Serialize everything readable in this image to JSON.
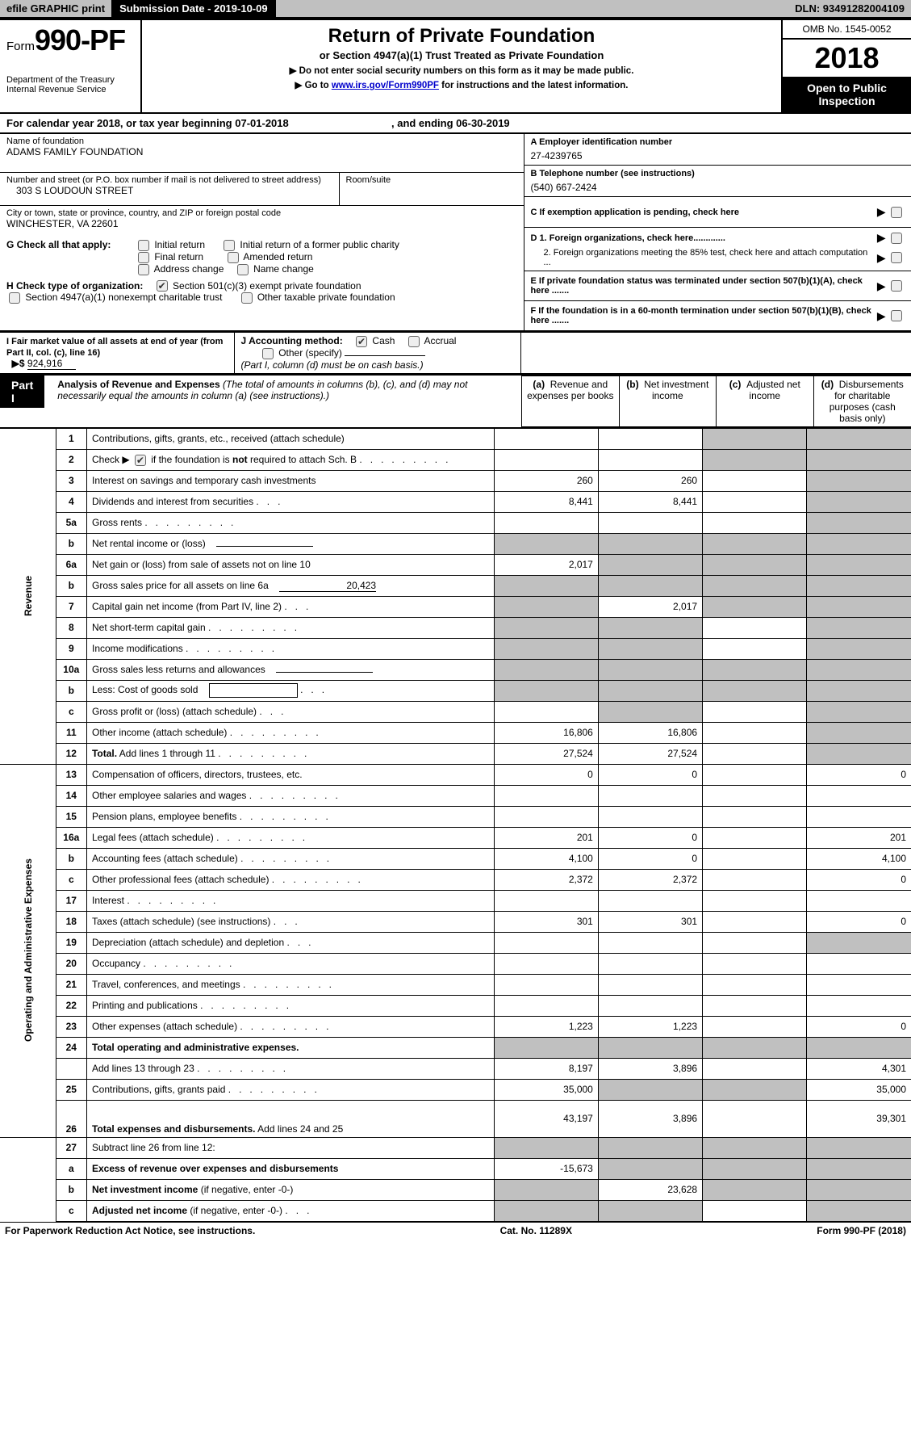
{
  "topbar": {
    "efile": "efile GRAPHIC print",
    "submission": "Submission Date - 2019-10-09",
    "dln": "DLN: 93491282004109"
  },
  "header": {
    "form_prefix": "Form",
    "form_number": "990-PF",
    "dept1": "Department of the Treasury",
    "dept2": "Internal Revenue Service",
    "title": "Return of Private Foundation",
    "subtitle": "or Section 4947(a)(1) Trust Treated as Private Foundation",
    "note1": "▶ Do not enter social security numbers on this form as it may be made public.",
    "note2_pre": "▶ Go to ",
    "note2_link": "www.irs.gov/Form990PF",
    "note2_post": " for instructions and the latest information.",
    "omb": "OMB No. 1545-0052",
    "year": "2018",
    "inspection": "Open to Public Inspection"
  },
  "calendar_line": {
    "pre": "For calendar year 2018, or tax year beginning ",
    "begin": "07-01-2018",
    "mid": ", and ending ",
    "end": "06-30-2019"
  },
  "identity": {
    "name_label": "Name of foundation",
    "name": "ADAMS FAMILY FOUNDATION",
    "street_label": "Number and street (or P.O. box number if mail is not delivered to street address)",
    "street": "303 S LOUDOUN STREET",
    "room_label": "Room/suite",
    "room": "",
    "city_label": "City or town, state or province, country, and ZIP or foreign postal code",
    "city": "WINCHESTER, VA  22601"
  },
  "right_block": {
    "a_label": "A Employer identification number",
    "a_val": "27-4239765",
    "b_label": "B Telephone number (see instructions)",
    "b_val": "(540) 667-2424",
    "c_label": "C  If exemption application is pending, check here",
    "d1": "D 1. Foreign organizations, check here.............",
    "d2": "2. Foreign organizations meeting the 85% test, check here and attach computation ...",
    "e": "E   If private foundation status was terminated under section 507(b)(1)(A), check here .......",
    "f": "F   If the foundation is in a 60-month termination under section 507(b)(1)(B), check here ......."
  },
  "section_g": {
    "label": "G Check all that apply:",
    "opts": [
      "Initial return",
      "Initial return of a former public charity",
      "Final return",
      "Amended return",
      "Address change",
      "Name change"
    ]
  },
  "section_h": {
    "label": "H Check type of organization:",
    "opt1": "Section 501(c)(3) exempt private foundation",
    "opt2": "Section 4947(a)(1) nonexempt charitable trust",
    "opt3": "Other taxable private foundation"
  },
  "section_i": {
    "label": "I Fair market value of all assets at end of year (from Part II, col. (c), line 16)",
    "prefix": "▶$",
    "value": "924,916"
  },
  "section_j": {
    "label": "J Accounting method:",
    "cash": "Cash",
    "accrual": "Accrual",
    "other": "Other (specify)",
    "note": "(Part I, column (d) must be on cash basis.)"
  },
  "part1": {
    "label": "Part I",
    "title": "Analysis of Revenue and Expenses",
    "subtitle": "(The total of amounts in columns (b), (c), and (d) may not necessarily equal the amounts in column (a) (see instructions).)",
    "col_a": "Revenue and expenses per books",
    "col_b": "Net investment income",
    "col_c": "Adjusted net income",
    "col_d": "Disbursements for charitable purposes (cash basis only)"
  },
  "rows_rev": [
    {
      "n": "1",
      "d": "Contributions, gifts, grants, etc., received (attach schedule)",
      "a": "",
      "b": "",
      "shaded": [
        "c",
        "d"
      ]
    },
    {
      "n": "2",
      "d": "Check ▶ __CB_CHECKED__ if the foundation is <b>not</b> required to attach Sch. B",
      "dots": true,
      "a": "",
      "b": "",
      "shaded": [
        "c",
        "d"
      ]
    },
    {
      "n": "3",
      "d": "Interest on savings and temporary cash investments",
      "a": "260",
      "b": "260",
      "c": "",
      "shaded": [
        "d"
      ]
    },
    {
      "n": "4",
      "d": "Dividends and interest from securities",
      "dots": "3",
      "a": "8,441",
      "b": "8,441",
      "c": "",
      "shaded": [
        "d"
      ]
    },
    {
      "n": "5a",
      "d": "Gross rents",
      "dots": true,
      "a": "",
      "b": "",
      "c": "",
      "shaded": [
        "d"
      ]
    },
    {
      "n": "b",
      "d": "Net rental income or (loss) __INLINE_UL__",
      "shaded": [
        "a",
        "b",
        "c",
        "d"
      ]
    },
    {
      "n": "6a",
      "d": "Net gain or (loss) from sale of assets not on line 10",
      "a": "2,017",
      "shaded": [
        "b",
        "c",
        "d"
      ]
    },
    {
      "n": "b",
      "d": "Gross sales price for all assets on line 6a __INLINE_VAL:20,423__",
      "shaded": [
        "a",
        "b",
        "c",
        "d"
      ]
    },
    {
      "n": "7",
      "d": "Capital gain net income (from Part IV, line 2)",
      "dots": "3",
      "shaded": [
        "a"
      ],
      "b": "2,017",
      "shaded2": [
        "c",
        "d"
      ]
    },
    {
      "n": "8",
      "d": "Net short-term capital gain",
      "dots": true,
      "shaded": [
        "a",
        "b"
      ],
      "c": "",
      "shaded2": [
        "d"
      ]
    },
    {
      "n": "9",
      "d": "Income modifications",
      "dots": true,
      "shaded": [
        "a",
        "b"
      ],
      "c": "",
      "shaded2": [
        "d"
      ]
    },
    {
      "n": "10a",
      "d": "Gross sales less returns and allowances __INLINE_UL__",
      "shaded": [
        "a",
        "b",
        "c",
        "d"
      ]
    },
    {
      "n": "b",
      "d": "Less: Cost of goods sold",
      "dots": "3",
      "inline_box": true,
      "shaded": [
        "a",
        "b",
        "c",
        "d"
      ]
    },
    {
      "n": "c",
      "d": "Gross profit or (loss) (attach schedule)",
      "dots": "3",
      "a": "",
      "shaded": [
        "b"
      ],
      "c": "",
      "shaded2": [
        "d"
      ]
    },
    {
      "n": "11",
      "d": "Other income (attach schedule)",
      "dots": true,
      "a": "16,806",
      "b": "16,806",
      "c": "",
      "shaded": [
        "d"
      ]
    },
    {
      "n": "12",
      "d": "<b>Total.</b> Add lines 1 through 11",
      "dots": true,
      "a": "27,524",
      "b": "27,524",
      "c": "",
      "shaded": [
        "d"
      ]
    }
  ],
  "rows_exp": [
    {
      "n": "13",
      "d": "Compensation of officers, directors, trustees, etc.",
      "a": "0",
      "b": "0",
      "c": "",
      "dd": "0"
    },
    {
      "n": "14",
      "d": "Other employee salaries and wages",
      "dots": true
    },
    {
      "n": "15",
      "d": "Pension plans, employee benefits",
      "dots": true
    },
    {
      "n": "16a",
      "d": "Legal fees (attach schedule)",
      "dots": true,
      "a": "201",
      "b": "0",
      "c": "",
      "dd": "201"
    },
    {
      "n": "b",
      "d": "Accounting fees (attach schedule)",
      "dots": true,
      "a": "4,100",
      "b": "0",
      "c": "",
      "dd": "4,100"
    },
    {
      "n": "c",
      "d": "Other professional fees (attach schedule)",
      "dots": true,
      "a": "2,372",
      "b": "2,372",
      "c": "",
      "dd": "0"
    },
    {
      "n": "17",
      "d": "Interest",
      "dots": true
    },
    {
      "n": "18",
      "d": "Taxes (attach schedule) (see instructions)",
      "dots": "3",
      "a": "301",
      "b": "301",
      "c": "",
      "dd": "0"
    },
    {
      "n": "19",
      "d": "Depreciation (attach schedule) and depletion",
      "dots": "3",
      "shaded": [
        "d"
      ]
    },
    {
      "n": "20",
      "d": "Occupancy",
      "dots": true
    },
    {
      "n": "21",
      "d": "Travel, conferences, and meetings",
      "dots": true
    },
    {
      "n": "22",
      "d": "Printing and publications",
      "dots": true
    },
    {
      "n": "23",
      "d": "Other expenses (attach schedule)",
      "dots": true,
      "a": "1,223",
      "b": "1,223",
      "c": "",
      "dd": "0"
    },
    {
      "n": "24",
      "d": "<b>Total operating and administrative expenses.</b>",
      "shaded": [
        "a",
        "b",
        "c",
        "d"
      ]
    },
    {
      "n": "",
      "d": "Add lines 13 through 23",
      "dots": true,
      "a": "8,197",
      "b": "3,896",
      "c": "",
      "dd": "4,301"
    },
    {
      "n": "25",
      "d": "Contributions, gifts, grants paid",
      "dots": true,
      "a": "35,000",
      "shaded": [
        "b",
        "c"
      ],
      "dd": "35,000"
    },
    {
      "n": "26",
      "d": "<b>Total expenses and disbursements.</b> Add lines 24 and 25",
      "a": "43,197",
      "b": "3,896",
      "c": "",
      "dd": "39,301",
      "tall": true
    }
  ],
  "rows_bottom": [
    {
      "n": "27",
      "d": "Subtract line 26 from line 12:",
      "shaded": [
        "a",
        "b",
        "c",
        "d"
      ]
    },
    {
      "n": "a",
      "d": "<b>Excess of revenue over expenses and disbursements</b>",
      "a": "-15,673",
      "shaded": [
        "b",
        "c",
        "d"
      ]
    },
    {
      "n": "b",
      "d": "<b>Net investment income</b> (if negative, enter -0-)",
      "shaded": [
        "a"
      ],
      "b": "23,628",
      "shaded2": [
        "c",
        "d"
      ]
    },
    {
      "n": "c",
      "d": "<b>Adjusted net income</b> (if negative, enter -0-)",
      "dots": "3",
      "shaded": [
        "a",
        "b"
      ],
      "c": "",
      "shaded2": [
        "d"
      ]
    }
  ],
  "footer": {
    "left": "For Paperwork Reduction Act Notice, see instructions.",
    "mid": "Cat. No. 11289X",
    "right": "Form 990-PF (2018)"
  },
  "side_labels": {
    "revenue": "Revenue",
    "expenses": "Operating and Administrative Expenses"
  }
}
